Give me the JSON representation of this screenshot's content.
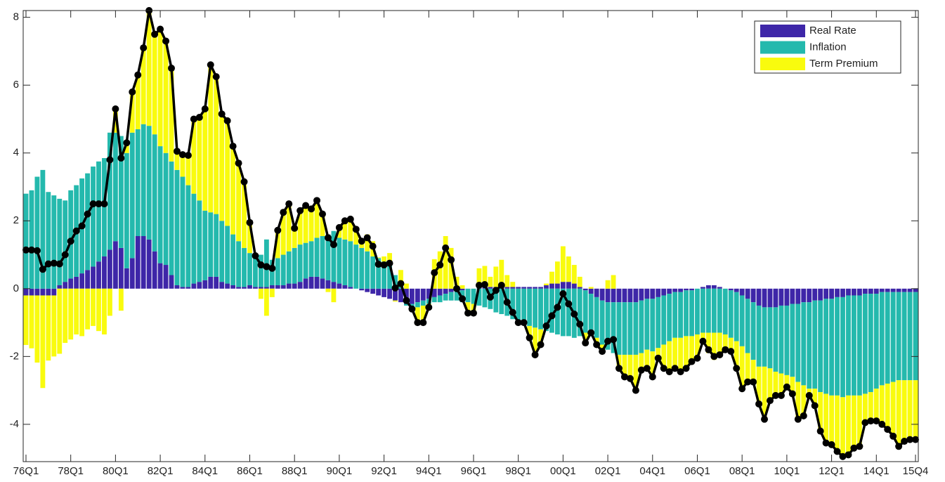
{
  "chart_data": {
    "type": "bar",
    "stacked": true,
    "legend": "top-right",
    "categories": [
      "76Q1",
      null,
      null,
      null,
      null,
      null,
      null,
      null,
      "78Q1",
      null,
      null,
      null,
      null,
      null,
      null,
      null,
      "80Q1",
      null,
      null,
      null,
      null,
      null,
      null,
      null,
      "82Q1",
      null,
      null,
      null,
      null,
      null,
      null,
      null,
      "84Q1",
      null,
      null,
      null,
      null,
      null,
      null,
      null,
      "86Q1",
      null,
      null,
      null,
      null,
      null,
      null,
      null,
      "88Q1",
      null,
      null,
      null,
      null,
      null,
      null,
      null,
      "90Q1",
      null,
      null,
      null,
      null,
      null,
      null,
      null,
      "92Q1",
      null,
      null,
      null,
      null,
      null,
      null,
      null,
      "94Q1",
      null,
      null,
      null,
      null,
      null,
      null,
      null,
      "96Q1",
      null,
      null,
      null,
      null,
      null,
      null,
      null,
      "98Q1",
      null,
      null,
      null,
      null,
      null,
      null,
      null,
      "00Q1",
      null,
      null,
      null,
      null,
      null,
      null,
      null,
      "02Q1",
      null,
      null,
      null,
      null,
      null,
      null,
      null,
      "04Q1",
      null,
      null,
      null,
      null,
      null,
      null,
      null,
      "06Q1",
      null,
      null,
      null,
      null,
      null,
      null,
      null,
      "08Q1",
      null,
      null,
      null,
      null,
      null,
      null,
      null,
      "10Q1",
      null,
      null,
      null,
      null,
      null,
      null,
      null,
      "12Q1",
      null,
      null,
      null,
      null,
      null,
      null,
      null,
      "14Q1",
      null,
      null,
      null,
      null,
      null,
      null,
      "15Q4"
    ],
    "ylim": [
      -5.1,
      8.2
    ],
    "yticks": [
      -4,
      -2,
      0,
      2,
      4,
      6,
      8
    ],
    "series": [
      {
        "name": "Real Rate",
        "color": "#3e26a8",
        "values": [
          -0.2,
          -0.2,
          -0.2,
          -0.2,
          -0.2,
          -0.2,
          0.1,
          0.2,
          0.3,
          0.35,
          0.45,
          0.55,
          0.65,
          0.8,
          0.95,
          1.15,
          1.4,
          1.2,
          0.6,
          0.9,
          1.55,
          1.55,
          1.45,
          1.1,
          0.75,
          0.7,
          0.4,
          0.1,
          0.05,
          0.05,
          0.15,
          0.2,
          0.25,
          0.35,
          0.35,
          0.2,
          0.15,
          0.1,
          0.05,
          0.05,
          0.1,
          0.05,
          0.05,
          0.05,
          0.1,
          0.1,
          0.1,
          0.15,
          0.15,
          0.2,
          0.3,
          0.35,
          0.35,
          0.3,
          0.25,
          0.2,
          0.15,
          0.1,
          0.05,
          0,
          -0.05,
          -0.1,
          -0.15,
          -0.2,
          -0.25,
          -0.3,
          -0.35,
          -0.4,
          -0.45,
          -0.45,
          -0.4,
          -0.35,
          -0.3,
          -0.25,
          -0.2,
          -0.15,
          -0.1,
          -0.05,
          -0.05,
          0,
          0,
          0.02,
          0.05,
          0.05,
          0.05,
          0.05,
          0.05,
          0.05,
          0.05,
          0.05,
          0.05,
          0.05,
          0.05,
          0.1,
          0.15,
          0.15,
          0.2,
          0.2,
          0.15,
          0.05,
          -0.05,
          -0.15,
          -0.25,
          -0.35,
          -0.4,
          -0.4,
          -0.4,
          -0.4,
          -0.4,
          -0.4,
          -0.35,
          -0.3,
          -0.3,
          -0.25,
          -0.2,
          -0.15,
          -0.1,
          -0.1,
          -0.05,
          -0.05,
          0,
          0.05,
          0.1,
          0.1,
          0.05,
          0,
          -0.05,
          -0.1,
          -0.2,
          -0.3,
          -0.4,
          -0.5,
          -0.55,
          -0.55,
          -0.55,
          -0.5,
          -0.5,
          -0.45,
          -0.45,
          -0.4,
          -0.4,
          -0.35,
          -0.35,
          -0.3,
          -0.3,
          -0.25,
          -0.25,
          -0.2,
          -0.2,
          -0.2,
          -0.15,
          -0.15,
          -0.15,
          -0.1,
          -0.1,
          -0.1,
          -0.1,
          -0.1,
          -0.1,
          -0.1
        ]
      },
      {
        "name": "Inflation",
        "color": "#24b9ad",
        "values": [
          2.8,
          2.9,
          3.3,
          3.5,
          2.85,
          2.75,
          2.55,
          2.4,
          2.6,
          2.7,
          2.8,
          2.85,
          2.95,
          2.95,
          2.9,
          3.45,
          3.2,
          3.3,
          3.4,
          3.7,
          3.15,
          3.3,
          3.35,
          3.45,
          3.45,
          3.3,
          3.35,
          3.4,
          3.25,
          3.0,
          2.65,
          2.4,
          2.05,
          1.9,
          1.85,
          1.8,
          1.7,
          1.5,
          1.35,
          1.15,
          0.95,
          0.9,
          0.95,
          1.4,
          0.75,
          0.8,
          0.9,
          0.95,
          1.05,
          1.1,
          1.05,
          1.05,
          1.15,
          1.25,
          1.35,
          1.5,
          1.35,
          1.35,
          1.35,
          1.3,
          1.2,
          1.1,
          0.95,
          0.9,
          0.8,
          0.7,
          0.4,
          0.15,
          -0.05,
          -0.1,
          -0.15,
          -0.15,
          -0.15,
          -0.15,
          -0.2,
          -0.2,
          -0.25,
          -0.3,
          -0.35,
          -0.4,
          -0.45,
          -0.5,
          -0.55,
          -0.6,
          -0.7,
          -0.75,
          -0.8,
          -0.9,
          -1.0,
          -1.05,
          -1.1,
          -1.15,
          -1.2,
          -1.25,
          -1.3,
          -1.35,
          -1.4,
          -1.4,
          -1.45,
          -1.4,
          -1.25,
          -1.2,
          -1.2,
          -1.3,
          -1.4,
          -1.5,
          -1.55,
          -1.55,
          -1.55,
          -1.55,
          -1.55,
          -1.5,
          -1.55,
          -1.5,
          -1.45,
          -1.4,
          -1.35,
          -1.35,
          -1.35,
          -1.35,
          -1.35,
          -1.3,
          -1.3,
          -1.3,
          -1.3,
          -1.35,
          -1.4,
          -1.45,
          -1.5,
          -1.6,
          -1.7,
          -1.8,
          -1.75,
          -1.8,
          -1.9,
          -2.0,
          -2.05,
          -2.15,
          -2.3,
          -2.45,
          -2.55,
          -2.6,
          -2.7,
          -2.8,
          -2.85,
          -2.9,
          -2.95,
          -2.95,
          -2.95,
          -2.95,
          -2.95,
          -2.9,
          -2.8,
          -2.75,
          -2.7,
          -2.65,
          -2.6,
          -2.6,
          -2.6,
          -2.6
        ]
      },
      {
        "name": "Term Premium",
        "color": "#f9fb0e",
        "values": [
          -1.46,
          -1.56,
          -1.98,
          -2.73,
          -1.92,
          -1.8,
          -1.92,
          -1.6,
          -1.5,
          -1.35,
          -1.4,
          -1.2,
          -1.1,
          -1.25,
          -1.35,
          -0.8,
          0.7,
          -0.65,
          0.3,
          1.2,
          1.6,
          2.25,
          3.4,
          2.95,
          3.45,
          3.3,
          2.75,
          0.55,
          0.65,
          0.88,
          2.2,
          2.45,
          3.0,
          4.35,
          4.05,
          3.15,
          3.1,
          2.6,
          2.3,
          1.95,
          0.9,
          0.02,
          -0.3,
          -0.8,
          -0.25,
          0.82,
          1.25,
          1.4,
          0.58,
          1.0,
          1.1,
          0.95,
          1.1,
          0.65,
          -0.1,
          -0.4,
          0.3,
          0.55,
          0.65,
          0.45,
          0.25,
          0.5,
          0.45,
          0.02,
          0.15,
          0.35,
          -0.03,
          0.4,
          0.15,
          -0.05,
          -0.45,
          -0.5,
          -0.1,
          0.87,
          1.1,
          1.55,
          1.2,
          0.35,
          0.1,
          -0.32,
          -0.27,
          0.58,
          0.62,
          0.3,
          0.6,
          0.8,
          0.35,
          0.15,
          -0.05,
          0,
          -0.4,
          -0.85,
          -0.5,
          0.05,
          0.35,
          0.65,
          1.05,
          0.75,
          0.55,
          0.3,
          -0.3,
          0.05,
          -0.2,
          -0.2,
          0.25,
          0.4,
          -0.4,
          -0.65,
          -0.7,
          -1.05,
          -0.5,
          -0.55,
          -0.75,
          -0.3,
          -0.7,
          -0.9,
          -0.9,
          -1.0,
          -0.95,
          -0.75,
          -0.7,
          -0.3,
          -0.6,
          -0.8,
          -0.7,
          -0.45,
          -0.4,
          -0.8,
          -1.25,
          -0.85,
          -0.65,
          -1.1,
          -1.55,
          -0.95,
          -0.7,
          -0.65,
          -0.35,
          -0.5,
          -1.1,
          -0.9,
          -0.2,
          -0.5,
          -1.15,
          -1.45,
          -1.45,
          -1.65,
          -1.75,
          -1.75,
          -1.55,
          -1.5,
          -0.85,
          -0.85,
          -0.95,
          -1.15,
          -1.35,
          -1.6,
          -1.95,
          -1.8,
          -1.75,
          -1.75
        ]
      }
    ],
    "line": {
      "color": "#000000",
      "values": [
        1.14,
        1.14,
        1.12,
        0.57,
        0.73,
        0.75,
        0.73,
        1.0,
        1.4,
        1.7,
        1.85,
        2.2,
        2.5,
        2.5,
        2.5,
        3.8,
        5.3,
        3.85,
        4.3,
        5.8,
        6.3,
        7.1,
        8.2,
        7.5,
        7.65,
        7.3,
        6.5,
        4.05,
        3.95,
        3.93,
        5.0,
        5.05,
        5.3,
        6.6,
        6.25,
        5.15,
        4.95,
        4.2,
        3.7,
        3.15,
        1.95,
        0.97,
        0.7,
        0.65,
        0.6,
        1.72,
        2.25,
        2.5,
        1.78,
        2.3,
        2.45,
        2.35,
        2.6,
        2.2,
        1.5,
        1.3,
        1.8,
        2.0,
        2.05,
        1.75,
        1.4,
        1.5,
        1.25,
        0.72,
        0.7,
        0.75,
        0.02,
        0.15,
        -0.35,
        -0.6,
        -1.0,
        -1.0,
        -0.55,
        0.47,
        0.7,
        1.2,
        0.85,
        0,
        -0.3,
        -0.72,
        -0.72,
        0.1,
        0.12,
        -0.25,
        -0.05,
        0.1,
        -0.4,
        -0.7,
        -1.0,
        -1.0,
        -1.45,
        -1.95,
        -1.65,
        -1.1,
        -0.8,
        -0.55,
        -0.15,
        -0.45,
        -0.75,
        -1.05,
        -1.6,
        -1.3,
        -1.65,
        -1.85,
        -1.55,
        -1.5,
        -2.35,
        -2.6,
        -2.65,
        -3.0,
        -2.4,
        -2.35,
        -2.6,
        -2.05,
        -2.35,
        -2.45,
        -2.35,
        -2.45,
        -2.35,
        -2.15,
        -2.05,
        -1.55,
        -1.8,
        -2.0,
        -1.95,
        -1.8,
        -1.85,
        -2.35,
        -2.95,
        -2.75,
        -2.75,
        -3.4,
        -3.85,
        -3.3,
        -3.15,
        -3.15,
        -2.9,
        -3.1,
        -3.85,
        -3.75,
        -3.15,
        -3.45,
        -4.2,
        -4.55,
        -4.6,
        -4.8,
        -4.95,
        -4.9,
        -4.7,
        -4.65,
        -3.95,
        -3.9,
        -3.9,
        -4.0,
        -4.15,
        -4.35,
        -4.65,
        -4.5,
        -4.45,
        -4.45
      ]
    }
  }
}
